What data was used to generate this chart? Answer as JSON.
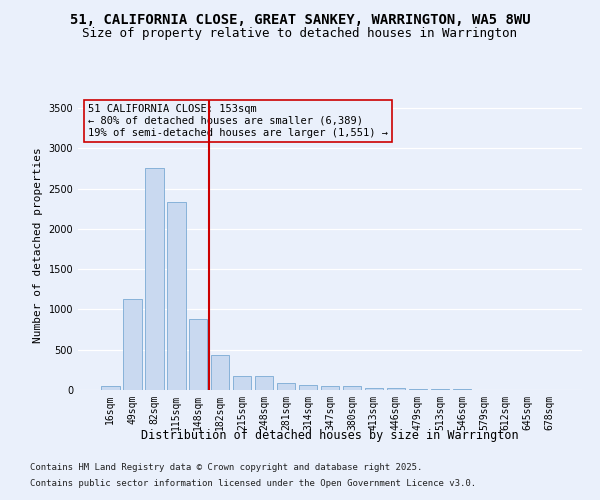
{
  "title": "51, CALIFORNIA CLOSE, GREAT SANKEY, WARRINGTON, WA5 8WU",
  "subtitle": "Size of property relative to detached houses in Warrington",
  "xlabel": "Distribution of detached houses by size in Warrington",
  "ylabel": "Number of detached properties",
  "categories": [
    "16sqm",
    "49sqm",
    "82sqm",
    "115sqm",
    "148sqm",
    "182sqm",
    "215sqm",
    "248sqm",
    "281sqm",
    "314sqm",
    "347sqm",
    "380sqm",
    "413sqm",
    "446sqm",
    "479sqm",
    "513sqm",
    "546sqm",
    "579sqm",
    "612sqm",
    "645sqm",
    "678sqm"
  ],
  "values": [
    55,
    1130,
    2760,
    2340,
    880,
    440,
    175,
    170,
    90,
    65,
    45,
    45,
    25,
    20,
    10,
    10,
    10,
    5,
    5,
    5,
    5
  ],
  "bar_color": "#c9d9f0",
  "bar_edge_color": "#7aaad4",
  "vline_x_index": 4,
  "vline_color": "#cc0000",
  "annotation_line1": "51 CALIFORNIA CLOSE: 153sqm",
  "annotation_line2": "← 80% of detached houses are smaller (6,389)",
  "annotation_line3": "19% of semi-detached houses are larger (1,551) →",
  "annotation_box_color": "#cc0000",
  "ylim": [
    0,
    3600
  ],
  "yticks": [
    0,
    500,
    1000,
    1500,
    2000,
    2500,
    3000,
    3500
  ],
  "bg_color": "#eaf0fb",
  "grid_color": "#ffffff",
  "footer_line1": "Contains HM Land Registry data © Crown copyright and database right 2025.",
  "footer_line2": "Contains public sector information licensed under the Open Government Licence v3.0.",
  "title_fontsize": 10,
  "subtitle_fontsize": 9,
  "xlabel_fontsize": 8.5,
  "ylabel_fontsize": 8,
  "tick_fontsize": 7,
  "annotation_fontsize": 7.5,
  "footer_fontsize": 6.5
}
